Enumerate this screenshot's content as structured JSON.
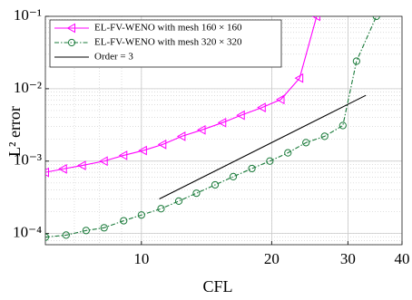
{
  "chart_data": {
    "type": "line",
    "xlabel": "CFL",
    "ylabel": "L² error",
    "xscale": "log",
    "yscale": "log",
    "xlim": [
      6,
      40
    ],
    "ylim": [
      7e-05,
      0.1
    ],
    "xticks": [
      10,
      20,
      30,
      40
    ],
    "yticks": [
      {
        "value": 0.0001,
        "label": "10⁻⁴"
      },
      {
        "value": 0.001,
        "label": "10⁻³"
      },
      {
        "value": 0.01,
        "label": "10⁻²"
      },
      {
        "value": 0.1,
        "label": "10⁻¹"
      }
    ],
    "grid": true,
    "minor_grid": true,
    "legend": "upper left",
    "series": [
      {
        "name": "EL-FV-WENO with mesh 160 × 160",
        "color": "#ff00ff",
        "marker": "triangle-left",
        "dash": "solid",
        "x": [
          6.0,
          6.6,
          7.3,
          8.2,
          9.1,
          10.1,
          11.2,
          12.4,
          13.8,
          15.4,
          17.0,
          19.0,
          21.0,
          23.2,
          25.4
        ],
        "values": [
          0.0007,
          0.00078,
          0.00087,
          0.001,
          0.0012,
          0.0014,
          0.0017,
          0.0022,
          0.0027,
          0.0034,
          0.0043,
          0.0055,
          0.0071,
          0.014,
          0.1
        ]
      },
      {
        "name": "EL-FV-WENO with mesh 320 × 320",
        "color": "#1a7a3a",
        "marker": "circle",
        "dash": "dashdot",
        "x": [
          6.0,
          6.7,
          7.45,
          8.2,
          9.1,
          10.0,
          11.1,
          12.2,
          13.4,
          14.8,
          16.3,
          18.0,
          19.8,
          21.8,
          24.0,
          26.5,
          29.2,
          31.4,
          34.9
        ],
        "values": [
          8.9e-05,
          9.5e-05,
          0.00011,
          0.00012,
          0.00015,
          0.00018,
          0.00022,
          0.00028,
          0.00036,
          0.00047,
          0.00061,
          0.00079,
          0.001,
          0.0013,
          0.0018,
          0.0022,
          0.0031,
          0.024,
          0.1
        ]
      },
      {
        "name": "Order = 3",
        "color": "#000000",
        "marker": "none",
        "dash": "solid",
        "x": [
          11,
          33
        ],
        "values": [
          0.0003,
          0.0081
        ]
      }
    ]
  }
}
